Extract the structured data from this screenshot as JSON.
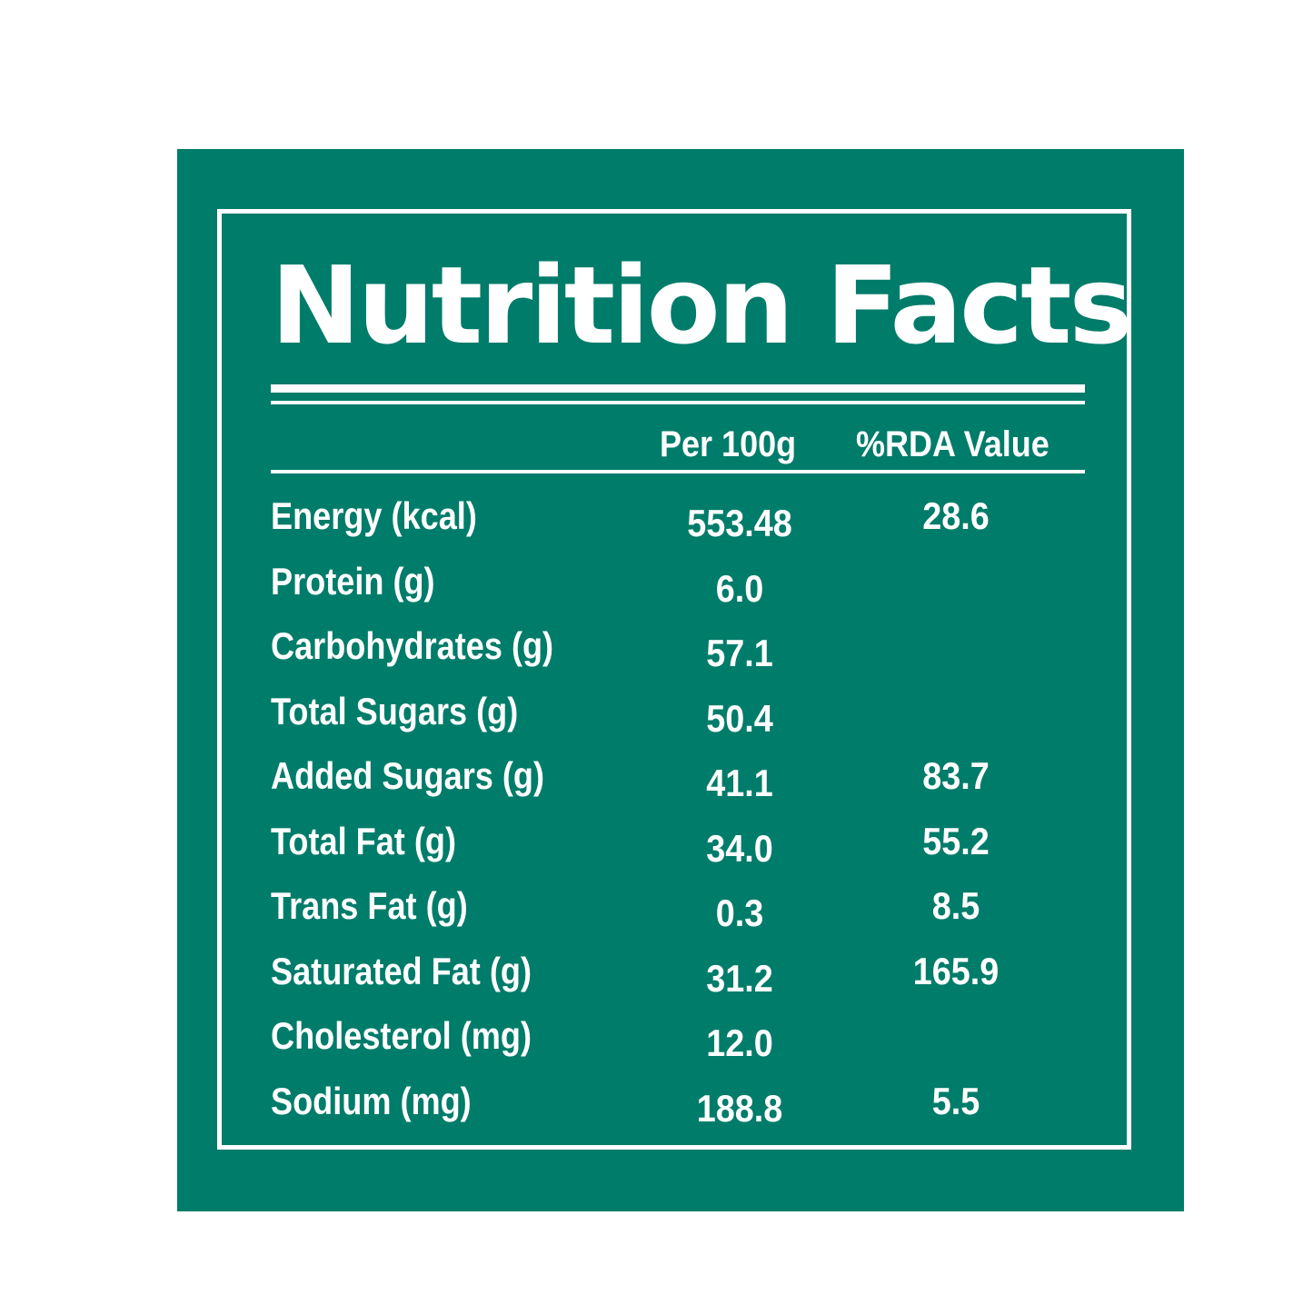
{
  "label": {
    "title": "Nutrition Facts",
    "columns": {
      "per": "Per 100g",
      "rda": "%RDA Value"
    },
    "rows": [
      {
        "name": "Energy (kcal)",
        "per": "553.48",
        "rda": "28.6"
      },
      {
        "name": "Protein (g)",
        "per": "6.0",
        "rda": ""
      },
      {
        "name": "Carbohydrates (g)",
        "per": "57.1",
        "rda": ""
      },
      {
        "name": "Total Sugars (g)",
        "per": "50.4",
        "rda": ""
      },
      {
        "name": "Added Sugars (g)",
        "per": "41.1",
        "rda": "83.7"
      },
      {
        "name": "Total Fat (g)",
        "per": "34.0",
        "rda": "55.2"
      },
      {
        "name": "Trans Fat (g)",
        "per": "0.3",
        "rda": "8.5"
      },
      {
        "name": "Saturated Fat (g)",
        "per": "31.2",
        "rda": "165.9"
      },
      {
        "name": "Cholesterol (mg)",
        "per": "12.0",
        "rda": ""
      },
      {
        "name": "Sodium (mg)",
        "per": "188.8",
        "rda": "5.5"
      }
    ]
  },
  "colors": {
    "panel": "#007c6a",
    "text": "#ffffff",
    "background": "#ffffff"
  }
}
